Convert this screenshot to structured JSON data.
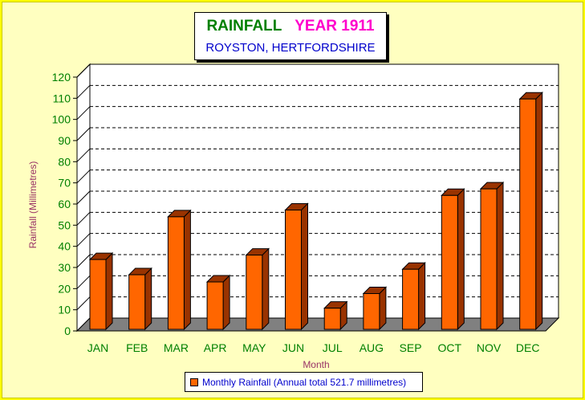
{
  "header": {
    "title_part1": "RAINFALL",
    "title_part2": "YEAR 1911",
    "subtitle": "ROYSTON, HERTFORDSHIRE"
  },
  "legend": {
    "label": "Monthly Rainfall (Annual total 521.7 millimetres)"
  },
  "colors": {
    "background": "#ffff00",
    "plot_panel": "#ffffc0",
    "bar_front": "#ff6600",
    "bar_side": "#993300",
    "floor": "#808080",
    "axis_text": "#008000",
    "axis_title": "#993366"
  },
  "chart_data": {
    "type": "bar",
    "title": "RAINFALL YEAR 1911",
    "subtitle": "ROYSTON, HERTFORDSHIRE",
    "xlabel": "Month",
    "ylabel": "Rainfall (Millimetres)",
    "categories": [
      "JAN",
      "FEB",
      "MAR",
      "APR",
      "MAY",
      "JUN",
      "JUL",
      "AUG",
      "SEP",
      "OCT",
      "NOV",
      "DEC"
    ],
    "series": [
      {
        "name": "Monthly Rainfall (Annual total 521.7 millimetres)",
        "values": [
          33.0,
          25.8,
          53.2,
          22.4,
          35.1,
          56.4,
          10.0,
          16.9,
          28.4,
          63.3,
          66.4,
          108.9
        ]
      }
    ],
    "ylim": [
      0,
      120
    ],
    "yticks": [
      0,
      10,
      20,
      30,
      40,
      50,
      60,
      70,
      80,
      90,
      100,
      110,
      120
    ],
    "grid": true,
    "legend_position": "bottom-center",
    "three_d": true
  }
}
